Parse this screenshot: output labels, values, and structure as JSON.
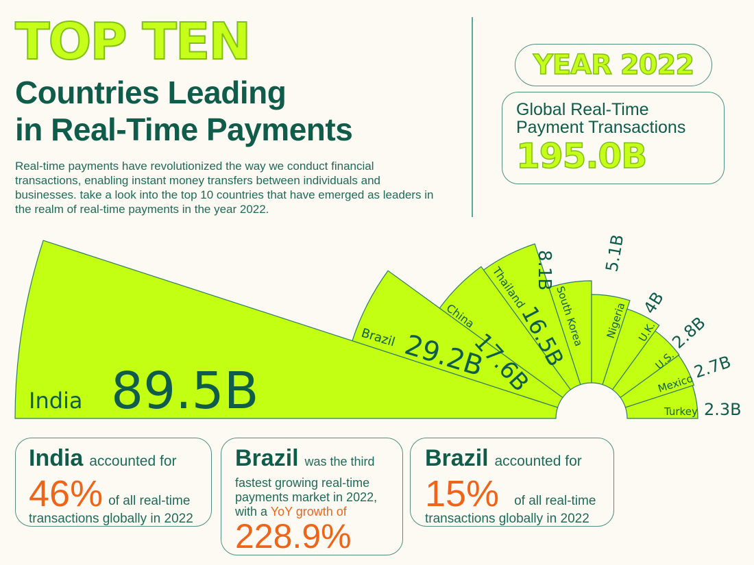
{
  "header": {
    "kicker": "TOP TEN",
    "title_line1": "Countries Leading",
    "title_line2": "in Real-Time Payments",
    "intro": "Real-time payments have revolutionized the way we conduct financial transactions, enabling instant money transfers between individuals and businesses. take a look into the top 10 countries that have emerged as leaders in the realm of real-time payments in the year 2022."
  },
  "year_badge": "YEAR 2022",
  "global": {
    "label_line1": "Global Real-Time",
    "label_line2": "Payment Transactions",
    "value": "195.0B"
  },
  "colors": {
    "background": "#fdf9f3",
    "wedge_fill": "#c2ff12",
    "wedge_stroke": "#2f7a66",
    "text_dark": "#0f5c4a",
    "accent_orange": "#f06418"
  },
  "chart_data": {
    "type": "pie",
    "subtype": "radial-fan (half-donut, equal angle, radius scaled by value)",
    "title": "Top Ten Countries Leading in Real-Time Payments (2022)",
    "unit": "billion transactions",
    "categories": [
      "India",
      "Brazil",
      "China",
      "Thailand",
      "South Korea",
      "Nigeria",
      "U.K.",
      "U.S.",
      "Mexico",
      "Turkey"
    ],
    "values": [
      89.5,
      29.2,
      17.6,
      16.5,
      8.1,
      5.1,
      4.0,
      2.8,
      2.7,
      2.3
    ],
    "labels": [
      "89.5B",
      "29.2B",
      "17.6B",
      "16.5B",
      "8.1B",
      "5.1B",
      "4B",
      "2.8B",
      "2.7B",
      "2.3B"
    ],
    "total": "195.0B"
  },
  "cards": [
    {
      "country": "India",
      "text1": "accounted for",
      "pct": "46%",
      "text2": "of all real-time",
      "text3": "transactions globally in 2022"
    },
    {
      "country": "Brazil",
      "text1": "was the third",
      "text2": "fastest growing real-time",
      "text3": "payments market in 2022,",
      "text4": "with a",
      "highlight": "YoY growth of",
      "pct": "228.9%"
    },
    {
      "country": "Brazil",
      "text1": "accounted for",
      "pct": "15%",
      "text2": "of all real-time",
      "text3": "transactions globally in 2022"
    }
  ]
}
